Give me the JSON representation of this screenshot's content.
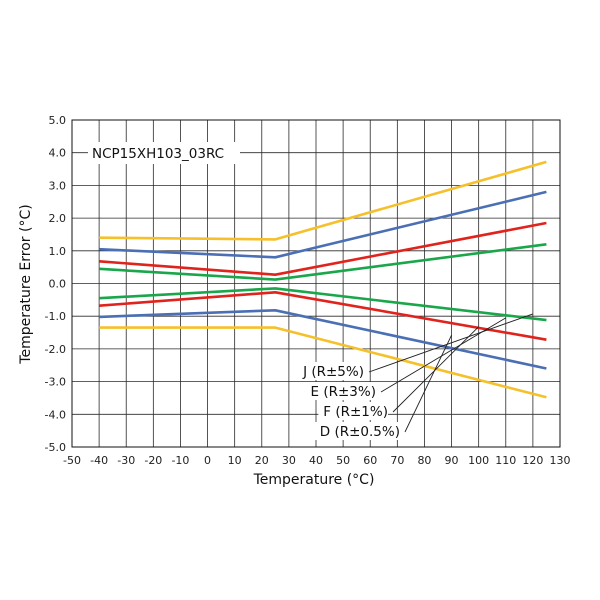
{
  "chart_data": {
    "type": "line",
    "title": "NCP15XH103_03RC",
    "xlabel": "Temperature (°C)",
    "ylabel": "Temperature Error (°C)",
    "xlim": [
      -50,
      130
    ],
    "ylim": [
      -5,
      5
    ],
    "xticks": [
      -50,
      -40,
      -30,
      -20,
      -10,
      0,
      10,
      20,
      30,
      40,
      50,
      60,
      70,
      80,
      90,
      100,
      110,
      120,
      130
    ],
    "yticks": [
      5,
      4,
      3,
      2,
      1,
      0,
      -1,
      -2,
      -3,
      -4,
      -5
    ],
    "ytick_labels": [
      "5.0",
      "4.0",
      "3.0",
      "2.0",
      "1.0",
      "0.0",
      "-1.0",
      "-2.0",
      "-3.0",
      "-4.0",
      "-5.0"
    ],
    "grid": true,
    "series": [
      {
        "name": "J (R±5%) upper",
        "color": "#f5c02a",
        "x": [
          -40,
          25,
          125
        ],
        "y": [
          1.4,
          1.35,
          3.72
        ]
      },
      {
        "name": "J (R±5%) lower",
        "color": "#f5c02a",
        "x": [
          -40,
          25,
          125
        ],
        "y": [
          -1.35,
          -1.35,
          -3.48
        ]
      },
      {
        "name": "E (R±3%) upper",
        "color": "#4a6fb5",
        "x": [
          -40,
          25,
          125
        ],
        "y": [
          1.05,
          0.8,
          2.8
        ]
      },
      {
        "name": "E (R±3%) lower",
        "color": "#4a6fb5",
        "x": [
          -40,
          25,
          125
        ],
        "y": [
          -1.02,
          -0.82,
          -2.6
        ]
      },
      {
        "name": "F (R±1%) upper",
        "color": "#e0231c",
        "x": [
          -40,
          25,
          125
        ],
        "y": [
          0.68,
          0.27,
          1.85
        ]
      },
      {
        "name": "F (R±1%) lower",
        "color": "#e0231c",
        "x": [
          -40,
          25,
          125
        ],
        "y": [
          -0.68,
          -0.27,
          -1.72
        ]
      },
      {
        "name": "D (R±0.5%) upper",
        "color": "#1aa64a",
        "x": [
          -40,
          25,
          125
        ],
        "y": [
          0.45,
          0.12,
          1.2
        ]
      },
      {
        "name": "D (R±0.5%) lower",
        "color": "#1aa64a",
        "x": [
          -40,
          25,
          125
        ],
        "y": [
          -0.45,
          -0.15,
          -1.12
        ]
      }
    ],
    "annotations": [
      {
        "text": "J (R±5%)",
        "target_x": 120,
        "target_y": -0.93
      },
      {
        "text": "E (R±3%)",
        "target_x": 110,
        "target_y": -1.05
      },
      {
        "text": "F (R±1%)",
        "target_x": 100,
        "target_y": -1.32
      },
      {
        "text": "D (R±0.5%)",
        "target_x": 90,
        "target_y": -1.58
      }
    ]
  }
}
